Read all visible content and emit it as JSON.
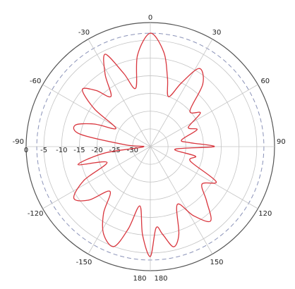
{
  "chart_data": {
    "type": "polar",
    "angle_unit": "deg",
    "radial_unit": "dB",
    "rlim": [
      -35,
      0
    ],
    "radial_ticks": [
      0,
      -5,
      -10,
      -15,
      -20,
      -25,
      -30
    ],
    "radial_tick_labels": [
      "0",
      "-5",
      "-10",
      "-15",
      "-20",
      "-25",
      "-30"
    ],
    "angle_ticks": [
      0,
      30,
      60,
      90,
      120,
      150,
      180,
      -150,
      -120,
      -90,
      -60,
      -30
    ],
    "angle_tick_labels": [
      "0",
      "30",
      "60",
      "90",
      "120",
      "150",
      "180",
      "-150",
      "-120",
      "-90",
      "-60",
      "-30"
    ],
    "extra_label_180": "180",
    "grid": true,
    "reference_ring_db": -3,
    "series": [
      {
        "color": "#d9363e",
        "points": [
          [
            -180,
            -4
          ],
          [
            -175,
            -10
          ],
          [
            -170,
            -18
          ],
          [
            -165,
            -11
          ],
          [
            -160,
            -5
          ],
          [
            -152,
            -7
          ],
          [
            -145,
            -12
          ],
          [
            -138,
            -18
          ],
          [
            -131,
            -12
          ],
          [
            -124,
            -9
          ],
          [
            -117,
            -14
          ],
          [
            -110,
            -22
          ],
          [
            -104,
            -14
          ],
          [
            -98,
            -22
          ],
          [
            -92,
            -33
          ],
          [
            -86,
            -28
          ],
          [
            -80,
            -15
          ],
          [
            -74,
            -13
          ],
          [
            -68,
            -18
          ],
          [
            -62,
            -24
          ],
          [
            -56,
            -16
          ],
          [
            -50,
            -10
          ],
          [
            -44,
            -13
          ],
          [
            -38,
            -17
          ],
          [
            -32,
            -11
          ],
          [
            -26,
            -6
          ],
          [
            -20,
            -13
          ],
          [
            -14,
            -18
          ],
          [
            -8,
            -9
          ],
          [
            0,
            -3
          ],
          [
            8,
            -8
          ],
          [
            14,
            -15
          ],
          [
            20,
            -20
          ],
          [
            26,
            -15
          ],
          [
            32,
            -9
          ],
          [
            40,
            -12
          ],
          [
            48,
            -20
          ],
          [
            56,
            -18
          ],
          [
            63,
            -23
          ],
          [
            70,
            -21
          ],
          [
            78,
            -26
          ],
          [
            84,
            -24
          ],
          [
            90,
            -17
          ],
          [
            96,
            -28
          ],
          [
            102,
            -22
          ],
          [
            110,
            -23
          ],
          [
            118,
            -14
          ],
          [
            126,
            -17
          ],
          [
            134,
            -13
          ],
          [
            141,
            -8
          ],
          [
            148,
            -12
          ],
          [
            155,
            -17
          ],
          [
            162,
            -9
          ],
          [
            167,
            -6
          ],
          [
            172,
            -10
          ],
          [
            176,
            -12
          ],
          [
            180,
            -4
          ]
        ]
      }
    ]
  }
}
